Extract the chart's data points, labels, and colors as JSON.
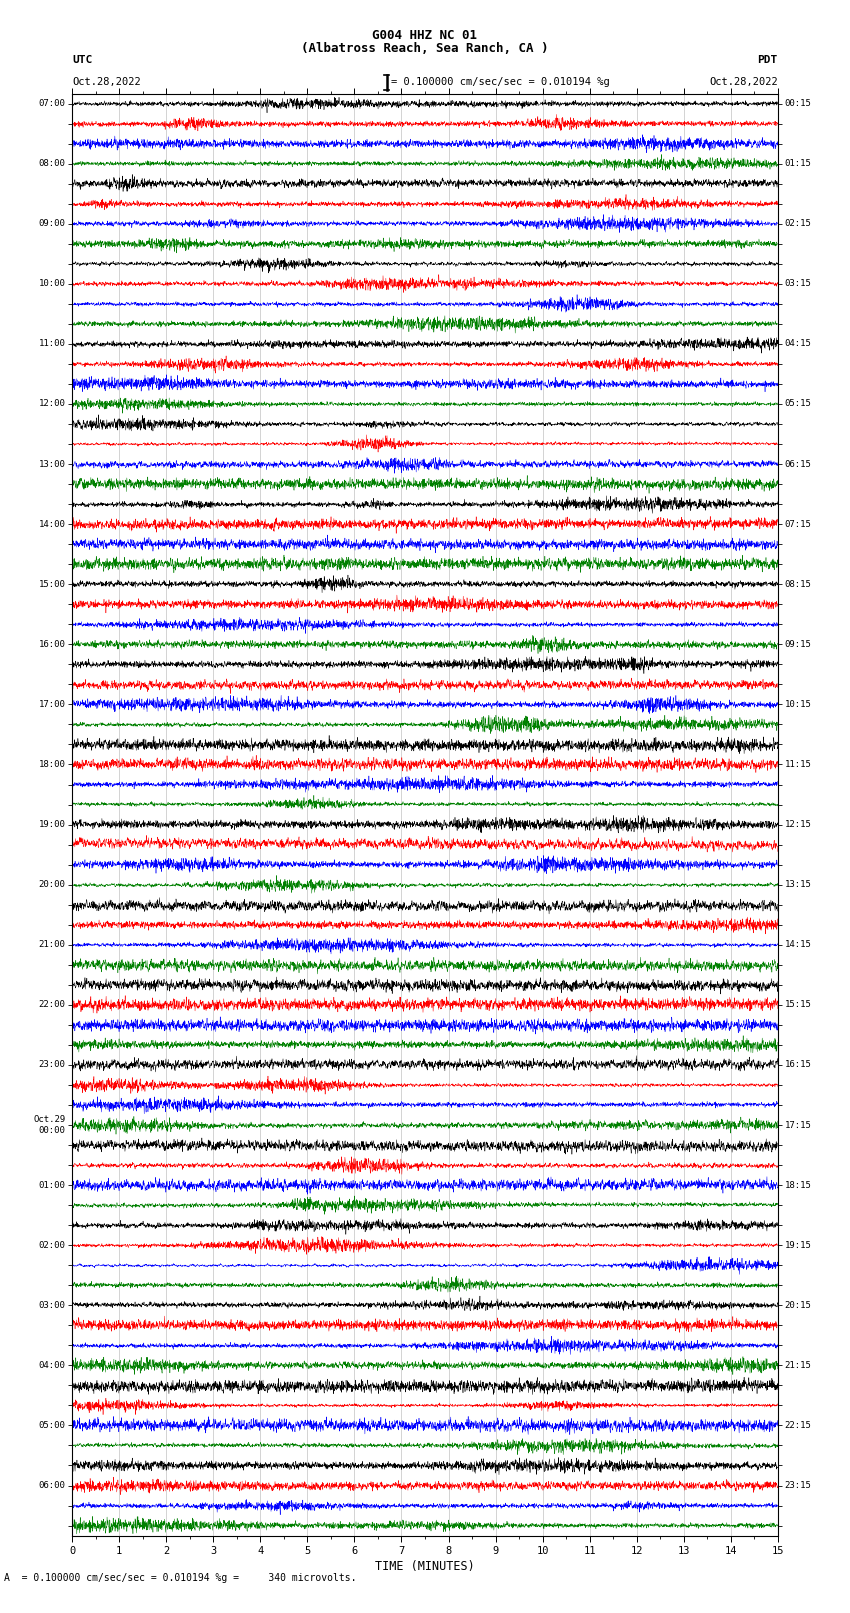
{
  "title_line1": "G004 HHZ NC 01",
  "title_line2": "(Albatross Reach, Sea Ranch, CA )",
  "left_label": "UTC",
  "right_label": "PDT",
  "left_date": "Oct.28,2022",
  "right_date": "Oct.28,2022",
  "scale_text": "= 0.100000 cm/sec/sec = 0.010194 %g",
  "bottom_label": "TIME (MINUTES)",
  "bottom_note": "A  = 0.100000 cm/sec/sec = 0.010194 %g =     340 microvolts.",
  "utc_times": [
    "07:00",
    "",
    "",
    "08:00",
    "",
    "",
    "09:00",
    "",
    "",
    "10:00",
    "",
    "",
    "11:00",
    "",
    "",
    "12:00",
    "",
    "",
    "13:00",
    "",
    "",
    "14:00",
    "",
    "",
    "15:00",
    "",
    "",
    "16:00",
    "",
    "",
    "17:00",
    "",
    "",
    "18:00",
    "",
    "",
    "19:00",
    "",
    "",
    "20:00",
    "",
    "",
    "21:00",
    "",
    "",
    "22:00",
    "",
    "",
    "23:00",
    "",
    "",
    "Oct.29\n00:00",
    "",
    "",
    "01:00",
    "",
    "",
    "02:00",
    "",
    "",
    "03:00",
    "",
    "",
    "04:00",
    "",
    "",
    "05:00",
    "",
    "",
    "06:00"
  ],
  "pdt_times": [
    "00:15",
    "",
    "",
    "01:15",
    "",
    "",
    "02:15",
    "",
    "",
    "03:15",
    "",
    "",
    "04:15",
    "",
    "",
    "05:15",
    "",
    "",
    "06:15",
    "",
    "",
    "07:15",
    "",
    "",
    "08:15",
    "",
    "",
    "09:15",
    "",
    "",
    "10:15",
    "",
    "",
    "11:15",
    "",
    "",
    "12:15",
    "",
    "",
    "13:15",
    "",
    "",
    "14:15",
    "",
    "",
    "15:15",
    "",
    "",
    "16:15",
    "",
    "",
    "17:15",
    "",
    "",
    "18:15",
    "",
    "",
    "19:15",
    "",
    "",
    "20:15",
    "",
    "",
    "21:15",
    "",
    "",
    "22:15",
    "",
    "",
    "23:15"
  ],
  "colors_cycle": [
    "black",
    "red",
    "blue",
    "green"
  ],
  "n_rows": 72,
  "x_ticks": [
    0,
    1,
    2,
    3,
    4,
    5,
    6,
    7,
    8,
    9,
    10,
    11,
    12,
    13,
    14,
    15
  ],
  "x_min": 0,
  "x_max": 15,
  "noise_seed": 42
}
